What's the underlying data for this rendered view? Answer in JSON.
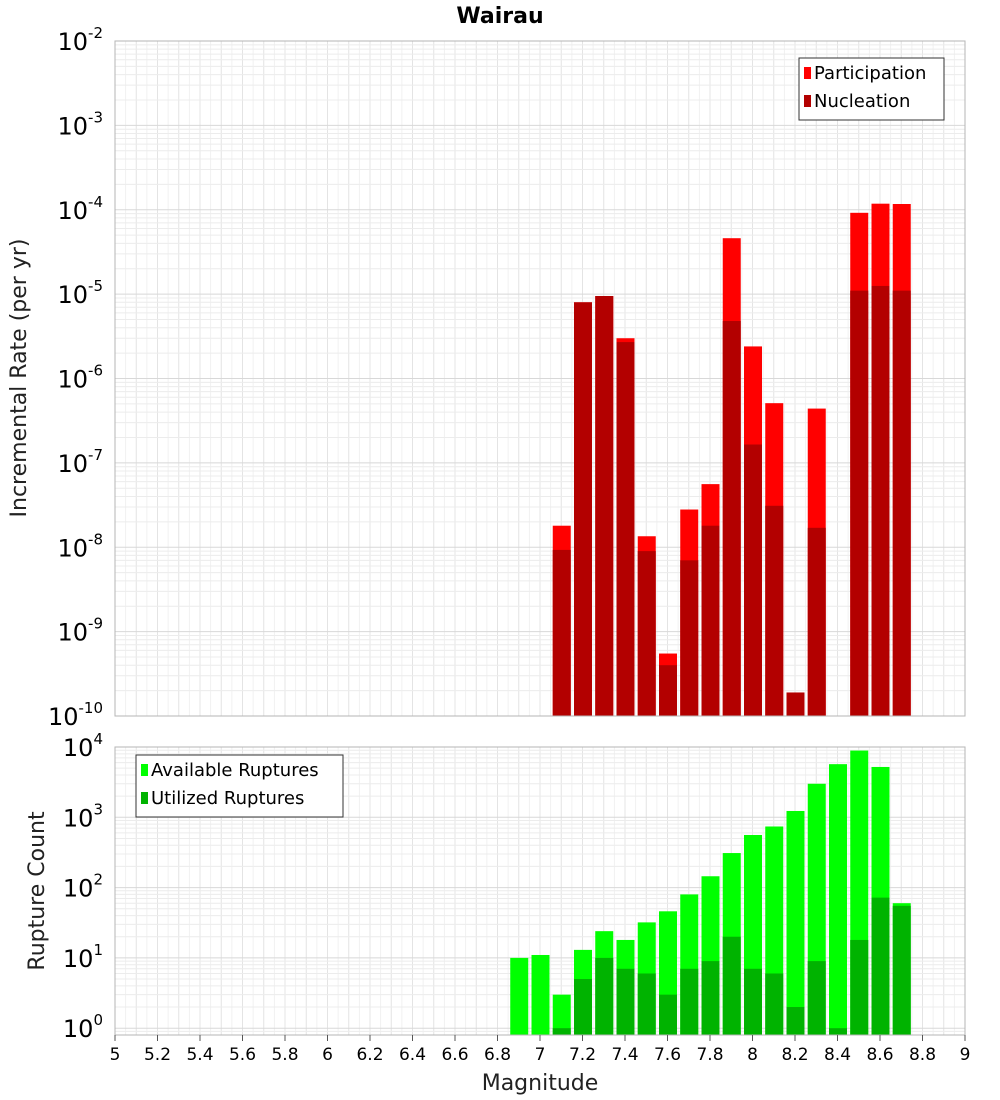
{
  "chart_data": [
    {
      "type": "bar",
      "title": "Wairau",
      "ylabel": "Incremental Rate (per yr)",
      "yscale": "log",
      "ylim": [
        1e-10,
        0.01
      ],
      "xlim": [
        5,
        9
      ],
      "grid": true,
      "legend_position": "top-right",
      "overlay": true,
      "x": [
        7.1,
        7.2,
        7.3,
        7.4,
        7.5,
        7.6,
        7.7,
        7.8,
        7.9,
        8.0,
        8.1,
        8.2,
        8.3,
        8.4,
        8.5,
        8.6,
        8.7
      ],
      "series": [
        {
          "name": "Participation",
          "color": "#ff0000",
          "values": [
            1.8e-08,
            8e-06,
            9.5e-06,
            3e-06,
            1.35e-08,
            5.5e-10,
            2.8e-08,
            5.6e-08,
            4.6e-05,
            2.4e-06,
            5.1e-07,
            1.9e-10,
            4.4e-07,
            null,
            9.2e-05,
            0.000118,
            0.000117
          ]
        },
        {
          "name": "Nucleation",
          "color": "#b30000",
          "values": [
            9.3e-09,
            8e-06,
            9.5e-06,
            2.7e-06,
            9e-09,
            4e-10,
            7e-09,
            1.8e-08,
            4.8e-06,
            1.65e-07,
            3.1e-08,
            1.9e-10,
            1.7e-08,
            null,
            1.1e-05,
            1.25e-05,
            1.1e-05
          ]
        }
      ]
    },
    {
      "type": "bar",
      "ylabel": "Rupture Count",
      "xlabel": "Magnitude",
      "yscale": "log",
      "ylim": [
        0.8,
        10000
      ],
      "xlim": [
        5,
        9
      ],
      "grid": true,
      "legend_position": "top-left",
      "overlay": true,
      "x_ticks": [
        5,
        5.2,
        5.4,
        5.6,
        5.8,
        6,
        6.2,
        6.4,
        6.6,
        6.8,
        7,
        7.2,
        7.4,
        7.6,
        7.8,
        8,
        8.2,
        8.4,
        8.6,
        8.8,
        9
      ],
      "x": [
        6.9,
        7.0,
        7.1,
        7.2,
        7.3,
        7.4,
        7.5,
        7.6,
        7.7,
        7.8,
        7.9,
        8.0,
        8.1,
        8.2,
        8.3,
        8.4,
        8.5,
        8.6,
        8.7
      ],
      "series": [
        {
          "name": "Available Ruptures",
          "color": "#00ff00",
          "values": [
            10,
            11,
            3,
            13,
            24,
            18,
            32,
            46,
            80,
            145,
            310,
            560,
            740,
            1230,
            3000,
            5700,
            8900,
            5200,
            60
          ]
        },
        {
          "name": "Utilized Ruptures",
          "color": "#00b300",
          "values": [
            null,
            null,
            1,
            5,
            10,
            7,
            6,
            3,
            7,
            9,
            20,
            7,
            6,
            2,
            9,
            1,
            18,
            72,
            55
          ]
        }
      ]
    }
  ],
  "tick_labels": {
    "x": [
      "5",
      "5.2",
      "5.4",
      "5.6",
      "5.8",
      "6",
      "6.2",
      "6.4",
      "6.6",
      "6.8",
      "7",
      "7.2",
      "7.4",
      "7.6",
      "7.8",
      "8",
      "8.2",
      "8.4",
      "8.6",
      "8.8",
      "9"
    ],
    "top_y_base": "10",
    "top_y_exp": [
      "-10",
      "-9",
      "-8",
      "-7",
      "-6",
      "-5",
      "-4",
      "-3",
      "-2"
    ],
    "bottom_y_base": "10",
    "bottom_y_exp": [
      "0",
      "1",
      "2",
      "3",
      "4"
    ]
  }
}
